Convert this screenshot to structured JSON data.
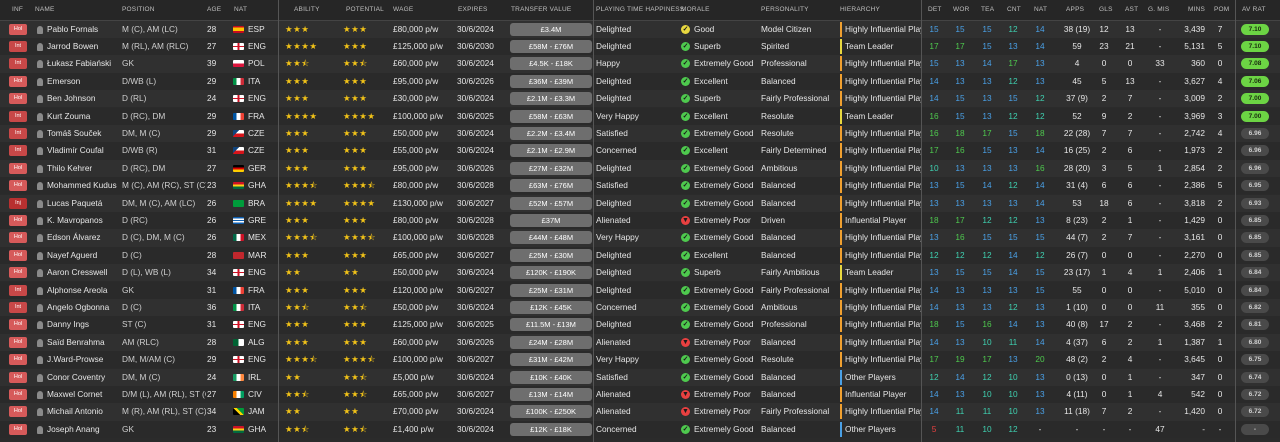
{
  "colors": {
    "green": "#4ec94e",
    "blue": "#4aa0e6",
    "teal": "#3fd0b0",
    "orange": "#f0a030",
    "red": "#e84040",
    "yellow": "#e8d840",
    "av_green": "#6cd444",
    "av_grey": "#4a4a4a"
  },
  "headers": {
    "inf": "INF",
    "name": "NAME",
    "position": "POSITION",
    "age": "AGE",
    "nat": "NAT",
    "ability": "ABILITY",
    "potential": "POTENTIAL",
    "wage": "WAGE",
    "expires": "EXPIRES",
    "transfer_value": "TRANSFER VALUE",
    "happiness": "PLAYING TIME HAPPINESS",
    "morale": "MORALE",
    "personality": "PERSONALITY",
    "hierarchy": "HIERARCHY",
    "det": "DET",
    "wor": "WOR",
    "tea": "TEA",
    "cnt": "CNT",
    "natstat": "NAT",
    "apps": "APPS",
    "gls": "GLS",
    "ast": "AST",
    "gmis": "G. MIS",
    "mins": "MINS",
    "pom": "POM",
    "avrat": "AV RAT"
  },
  "rows": [
    {
      "inf": "Hol",
      "inf_color": "#d65a5a",
      "name": "Pablo Fornals",
      "position": "M (C), AM (LC)",
      "age": "28",
      "nat": "ESP",
      "ability": 3,
      "potential": 3,
      "wage": "£80,000 p/w",
      "expires": "30/6/2024",
      "tv": "£3.4M",
      "happiness": "Delighted",
      "morale": "Good",
      "morale_color": "#e8d840",
      "personality": "Model Citizen",
      "hierarchy": "Highly Influential Player",
      "hier_color": "#f0a030",
      "det": "15",
      "wor": "15",
      "tea": "15",
      "cnt": "12",
      "natstat": "14",
      "apps": "38 (19)",
      "gls": "12",
      "ast": "13",
      "gmis": "-",
      "mins": "3,439",
      "pom": "7",
      "avrat": "7.10",
      "av_hi": true
    },
    {
      "inf": "Int",
      "inf_color": "#c84848",
      "name": "Jarrod Bowen",
      "position": "M (RL), AM (RLC)",
      "age": "27",
      "nat": "ENG",
      "ability": 4,
      "potential": 3,
      "wage": "£125,000 p/w",
      "expires": "30/6/2030",
      "tv": "£58M - £76M",
      "happiness": "Delighted",
      "morale": "Superb",
      "morale_color": "#4ec94e",
      "personality": "Spirited",
      "hierarchy": "Team Leader",
      "hier_color": "#e8d840",
      "det": "17",
      "wor": "17",
      "tea": "15",
      "cnt": "13",
      "natstat": "14",
      "apps": "59",
      "gls": "23",
      "ast": "21",
      "gmis": "-",
      "mins": "5,131",
      "pom": "5",
      "avrat": "7.10",
      "av_hi": true
    },
    {
      "inf": "Int",
      "inf_color": "#c84848",
      "name": "Łukasz Fabiański",
      "position": "GK",
      "age": "39",
      "nat": "POL",
      "ability": 2.5,
      "potential": 2.5,
      "wage": "£60,000 p/w",
      "expires": "30/6/2024",
      "tv": "£4.5K - £18K",
      "happiness": "Happy",
      "morale": "Extremely Good",
      "morale_color": "#4ec94e",
      "personality": "Professional",
      "hierarchy": "Highly Influential Player",
      "hier_color": "#f0a030",
      "det": "15",
      "wor": "13",
      "tea": "14",
      "cnt": "17",
      "natstat": "13",
      "apps": "4",
      "gls": "0",
      "ast": "0",
      "gmis": "33",
      "mins": "360",
      "pom": "0",
      "avrat": "7.08",
      "av_hi": true
    },
    {
      "inf": "Hol",
      "inf_color": "#d65a5a",
      "name": "Emerson",
      "position": "D/WB (L)",
      "age": "29",
      "nat": "ITA",
      "ability": 3,
      "potential": 3,
      "wage": "£95,000 p/w",
      "expires": "30/6/2026",
      "tv": "£36M - £39M",
      "happiness": "Delighted",
      "morale": "Excellent",
      "morale_color": "#4ec94e",
      "personality": "Balanced",
      "hierarchy": "Highly Influential Player",
      "hier_color": "#f0a030",
      "det": "14",
      "wor": "13",
      "tea": "13",
      "cnt": "12",
      "natstat": "13",
      "apps": "45",
      "gls": "5",
      "ast": "13",
      "gmis": "-",
      "mins": "3,627",
      "pom": "4",
      "avrat": "7.06",
      "av_hi": true
    },
    {
      "inf": "Hol",
      "inf_color": "#d65a5a",
      "name": "Ben Johnson",
      "position": "D (RL)",
      "age": "24",
      "nat": "ENG",
      "ability": 3,
      "potential": 3,
      "wage": "£30,000 p/w",
      "expires": "30/6/2024",
      "tv": "£2.1M - £3.3M",
      "happiness": "Delighted",
      "morale": "Superb",
      "morale_color": "#4ec94e",
      "personality": "Fairly Professional",
      "hierarchy": "Highly Influential Player",
      "hier_color": "#f0a030",
      "det": "14",
      "wor": "15",
      "tea": "13",
      "cnt": "15",
      "natstat": "12",
      "apps": "37 (9)",
      "gls": "2",
      "ast": "7",
      "gmis": "-",
      "mins": "3,009",
      "pom": "2",
      "avrat": "7.00",
      "av_hi": true
    },
    {
      "inf": "Int",
      "inf_color": "#c84848",
      "name": "Kurt Zouma",
      "position": "D (RC), DM",
      "age": "29",
      "nat": "FRA",
      "ability": 4,
      "potential": 4,
      "wage": "£100,000 p/w",
      "expires": "30/6/2025",
      "tv": "£58M - £63M",
      "happiness": "Very Happy",
      "morale": "Excellent",
      "morale_color": "#4ec94e",
      "personality": "Resolute",
      "hierarchy": "Team Leader",
      "hier_color": "#e8d840",
      "det": "16",
      "wor": "15",
      "tea": "13",
      "cnt": "12",
      "natstat": "12",
      "apps": "52",
      "gls": "9",
      "ast": "2",
      "gmis": "-",
      "mins": "3,969",
      "pom": "3",
      "avrat": "7.00",
      "av_hi": true
    },
    {
      "inf": "Int",
      "inf_color": "#c84848",
      "name": "Tomáš Souček",
      "position": "DM, M (C)",
      "age": "29",
      "nat": "CZE",
      "ability": 3,
      "potential": 3,
      "wage": "£50,000 p/w",
      "expires": "30/6/2024",
      "tv": "£2.2M - £3.4M",
      "happiness": "Satisfied",
      "morale": "Extremely Good",
      "morale_color": "#4ec94e",
      "personality": "Resolute",
      "hierarchy": "Highly Influential Player",
      "hier_color": "#f0a030",
      "det": "16",
      "wor": "18",
      "tea": "17",
      "cnt": "15",
      "natstat": "18",
      "apps": "22 (28)",
      "gls": "7",
      "ast": "7",
      "gmis": "-",
      "mins": "2,742",
      "pom": "4",
      "avrat": "6.96",
      "av_hi": false
    },
    {
      "inf": "Int",
      "inf_color": "#c84848",
      "name": "Vladimír Coufal",
      "position": "D/WB (R)",
      "age": "31",
      "nat": "CZE",
      "ability": 3,
      "potential": 3,
      "wage": "£55,000 p/w",
      "expires": "30/6/2024",
      "tv": "£2.1M - £2.9M",
      "happiness": "Concerned",
      "morale": "Excellent",
      "morale_color": "#4ec94e",
      "personality": "Fairly Determined",
      "hierarchy": "Highly Influential Player",
      "hier_color": "#f0a030",
      "det": "17",
      "wor": "16",
      "tea": "15",
      "cnt": "13",
      "natstat": "14",
      "apps": "16 (25)",
      "gls": "2",
      "ast": "6",
      "gmis": "-",
      "mins": "1,973",
      "pom": "2",
      "avrat": "6.96",
      "av_hi": false
    },
    {
      "inf": "Hol",
      "inf_color": "#d65a5a",
      "name": "Thilo Kehrer",
      "position": "D (RC), DM",
      "age": "27",
      "nat": "GER",
      "ability": 3,
      "potential": 3,
      "wage": "£95,000 p/w",
      "expires": "30/6/2026",
      "tv": "£27M - £32M",
      "happiness": "Delighted",
      "morale": "Extremely Good",
      "morale_color": "#4ec94e",
      "personality": "Ambitious",
      "hierarchy": "Highly Influential Player",
      "hier_color": "#f0a030",
      "det": "10",
      "wor": "13",
      "tea": "13",
      "cnt": "13",
      "natstat": "16",
      "apps": "28 (20)",
      "gls": "3",
      "ast": "5",
      "gmis": "1",
      "mins": "2,854",
      "pom": "2",
      "avrat": "6.96",
      "av_hi": false
    },
    {
      "inf": "Hol",
      "inf_color": "#d65a5a",
      "name": "Mohammed Kudus",
      "position": "M (C), AM (RC), ST (C)",
      "age": "23",
      "nat": "GHA",
      "ability": 3.5,
      "potential": 3.5,
      "wage": "£80,000 p/w",
      "expires": "30/6/2028",
      "tv": "£63M - £76M",
      "happiness": "Satisfied",
      "morale": "Extremely Good",
      "morale_color": "#4ec94e",
      "personality": "Balanced",
      "hierarchy": "Highly Influential Player",
      "hier_color": "#f0a030",
      "det": "13",
      "wor": "15",
      "tea": "14",
      "cnt": "12",
      "natstat": "14",
      "apps": "31 (4)",
      "gls": "6",
      "ast": "6",
      "gmis": "-",
      "mins": "2,386",
      "pom": "5",
      "avrat": "6.95",
      "av_hi": false
    },
    {
      "inf": "Inj",
      "inf_color": "#b83030",
      "name": "Lucas Paquetá",
      "position": "DM, M (C), AM (LC)",
      "age": "26",
      "nat": "BRA",
      "ability": 4,
      "potential": 4,
      "wage": "£130,000 p/w",
      "expires": "30/6/2027",
      "tv": "£52M - £57M",
      "happiness": "Delighted",
      "morale": "Extremely Good",
      "morale_color": "#4ec94e",
      "personality": "Balanced",
      "hierarchy": "Highly Influential Player",
      "hier_color": "#f0a030",
      "det": "13",
      "wor": "13",
      "tea": "13",
      "cnt": "13",
      "natstat": "14",
      "apps": "53",
      "gls": "18",
      "ast": "6",
      "gmis": "-",
      "mins": "3,818",
      "pom": "2",
      "avrat": "6.93",
      "av_hi": false
    },
    {
      "inf": "Hol",
      "inf_color": "#d65a5a",
      "name": "K. Mavropanos",
      "position": "D (RC)",
      "age": "26",
      "nat": "GRE",
      "ability": 3,
      "potential": 3,
      "wage": "£80,000 p/w",
      "expires": "30/6/2028",
      "tv": "£37M",
      "happiness": "Alienated",
      "morale": "Extremely Poor",
      "morale_color": "#e84040",
      "personality": "Driven",
      "hierarchy": "Influential Player",
      "hier_color": "#f0a030",
      "det": "18",
      "wor": "17",
      "tea": "12",
      "cnt": "12",
      "natstat": "13",
      "apps": "8 (23)",
      "gls": "2",
      "ast": "1",
      "gmis": "-",
      "mins": "1,429",
      "pom": "0",
      "avrat": "6.85",
      "av_hi": false
    },
    {
      "inf": "Hol",
      "inf_color": "#d65a5a",
      "name": "Edson Álvarez",
      "position": "D (C), DM, M (C)",
      "age": "26",
      "nat": "MEX",
      "ability": 3.5,
      "potential": 3.5,
      "wage": "£100,000 p/w",
      "expires": "30/6/2028",
      "tv": "£44M - £48M",
      "happiness": "Very Happy",
      "morale": "Extremely Good",
      "morale_color": "#4ec94e",
      "personality": "Balanced",
      "hierarchy": "Highly Influential Player",
      "hier_color": "#f0a030",
      "det": "13",
      "wor": "16",
      "tea": "15",
      "cnt": "15",
      "natstat": "15",
      "apps": "44 (7)",
      "gls": "2",
      "ast": "7",
      "gmis": "-",
      "mins": "3,161",
      "pom": "0",
      "avrat": "6.85",
      "av_hi": false
    },
    {
      "inf": "Hol",
      "inf_color": "#d65a5a",
      "name": "Nayef Aguerd",
      "position": "D (C)",
      "age": "28",
      "nat": "MAR",
      "ability": 3,
      "potential": 3,
      "wage": "£65,000 p/w",
      "expires": "30/6/2027",
      "tv": "£25M - £30M",
      "happiness": "Delighted",
      "morale": "Excellent",
      "morale_color": "#4ec94e",
      "personality": "Balanced",
      "hierarchy": "Highly Influential Player",
      "hier_color": "#f0a030",
      "det": "12",
      "wor": "12",
      "tea": "12",
      "cnt": "14",
      "natstat": "12",
      "apps": "26 (7)",
      "gls": "0",
      "ast": "0",
      "gmis": "-",
      "mins": "2,270",
      "pom": "0",
      "avrat": "6.85",
      "av_hi": false
    },
    {
      "inf": "Hol",
      "inf_color": "#d65a5a",
      "name": "Aaron Cresswell",
      "position": "D (L), WB (L)",
      "age": "34",
      "nat": "ENG",
      "ability": 2,
      "potential": 2,
      "wage": "£50,000 p/w",
      "expires": "30/6/2024",
      "tv": "£120K - £190K",
      "happiness": "Delighted",
      "morale": "Superb",
      "morale_color": "#4ec94e",
      "personality": "Fairly Ambitious",
      "hierarchy": "Team Leader",
      "hier_color": "#e8d840",
      "det": "13",
      "wor": "15",
      "tea": "15",
      "cnt": "14",
      "natstat": "15",
      "apps": "23 (17)",
      "gls": "1",
      "ast": "4",
      "gmis": "1",
      "mins": "2,406",
      "pom": "1",
      "avrat": "6.84",
      "av_hi": false
    },
    {
      "inf": "Int",
      "inf_color": "#c84848",
      "name": "Alphonse Areola",
      "position": "GK",
      "age": "31",
      "nat": "FRA",
      "ability": 3,
      "potential": 3,
      "wage": "£120,000 p/w",
      "expires": "30/6/2027",
      "tv": "£25M - £31M",
      "happiness": "Delighted",
      "morale": "Extremely Good",
      "morale_color": "#4ec94e",
      "personality": "Fairly Professional",
      "hierarchy": "Highly Influential Player",
      "hier_color": "#f0a030",
      "det": "14",
      "wor": "13",
      "tea": "13",
      "cnt": "13",
      "natstat": "15",
      "apps": "55",
      "gls": "0",
      "ast": "0",
      "gmis": "-",
      "mins": "5,010",
      "pom": "0",
      "avrat": "6.84",
      "av_hi": false
    },
    {
      "inf": "Int",
      "inf_color": "#c84848",
      "name": "Angelo Ogbonna",
      "position": "D (C)",
      "age": "36",
      "nat": "ITA",
      "ability": 2.5,
      "potential": 2.5,
      "wage": "£50,000 p/w",
      "expires": "30/6/2024",
      "tv": "£12K - £45K",
      "happiness": "Concerned",
      "morale": "Extremely Good",
      "morale_color": "#4ec94e",
      "personality": "Ambitious",
      "hierarchy": "Highly Influential Player",
      "hier_color": "#f0a030",
      "det": "14",
      "wor": "13",
      "tea": "13",
      "cnt": "12",
      "natstat": "13",
      "apps": "1 (10)",
      "gls": "0",
      "ast": "0",
      "gmis": "11",
      "mins": "355",
      "pom": "0",
      "avrat": "6.82",
      "av_hi": false
    },
    {
      "inf": "Hol",
      "inf_color": "#d65a5a",
      "name": "Danny Ings",
      "position": "ST (C)",
      "age": "31",
      "nat": "ENG",
      "ability": 3,
      "potential": 3,
      "wage": "£125,000 p/w",
      "expires": "30/6/2025",
      "tv": "£11.5M - £13M",
      "happiness": "Delighted",
      "morale": "Extremely Good",
      "morale_color": "#4ec94e",
      "personality": "Professional",
      "hierarchy": "Highly Influential Player",
      "hier_color": "#f0a030",
      "det": "18",
      "wor": "15",
      "tea": "16",
      "cnt": "14",
      "natstat": "13",
      "apps": "40 (8)",
      "gls": "17",
      "ast": "2",
      "gmis": "-",
      "mins": "3,468",
      "pom": "2",
      "avrat": "6.81",
      "av_hi": false
    },
    {
      "inf": "Hol",
      "inf_color": "#d65a5a",
      "name": "Saïd Benrahma",
      "position": "AM (RLC)",
      "age": "28",
      "nat": "ALG",
      "ability": 3,
      "potential": 3,
      "wage": "£60,000 p/w",
      "expires": "30/6/2026",
      "tv": "£24M - £28M",
      "happiness": "Alienated",
      "morale": "Extremely Poor",
      "morale_color": "#e84040",
      "personality": "Balanced",
      "hierarchy": "Highly Influential Player",
      "hier_color": "#f0a030",
      "det": "14",
      "wor": "13",
      "tea": "10",
      "cnt": "11",
      "natstat": "14",
      "apps": "4 (37)",
      "gls": "6",
      "ast": "2",
      "gmis": "1",
      "mins": "1,387",
      "pom": "1",
      "avrat": "6.80",
      "av_hi": false
    },
    {
      "inf": "Hol",
      "inf_color": "#d65a5a",
      "name": "J.Ward-Prowse",
      "position": "DM, M/AM (C)",
      "age": "29",
      "nat": "ENG",
      "ability": 3.5,
      "potential": 3.5,
      "wage": "£100,000 p/w",
      "expires": "30/6/2027",
      "tv": "£31M - £42M",
      "happiness": "Very Happy",
      "morale": "Extremely Good",
      "morale_color": "#4ec94e",
      "personality": "Resolute",
      "hierarchy": "Highly Influential Player",
      "hier_color": "#f0a030",
      "det": "17",
      "wor": "19",
      "tea": "17",
      "cnt": "13",
      "natstat": "20",
      "apps": "48 (2)",
      "gls": "2",
      "ast": "4",
      "gmis": "-",
      "mins": "3,645",
      "pom": "0",
      "avrat": "6.75",
      "av_hi": false
    },
    {
      "inf": "Hol",
      "inf_color": "#d65a5a",
      "name": "Conor Coventry",
      "position": "DM, M (C)",
      "age": "24",
      "nat": "IRL",
      "ability": 2,
      "potential": 2.5,
      "wage": "£5,000 p/w",
      "expires": "30/6/2024",
      "tv": "£10K - £40K",
      "happiness": "Satisfied",
      "morale": "Extremely Good",
      "morale_color": "#4ec94e",
      "personality": "Balanced",
      "hierarchy": "Other Players",
      "hier_color": "#4aa0e6",
      "det": "12",
      "wor": "14",
      "tea": "12",
      "cnt": "10",
      "natstat": "13",
      "apps": "0 (13)",
      "gls": "0",
      "ast": "1",
      "gmis": "-",
      "mins": "347",
      "pom": "0",
      "avrat": "6.74",
      "av_hi": false
    },
    {
      "inf": "Hol",
      "inf_color": "#d65a5a",
      "name": "Maxwel Cornet",
      "position": "D/M (L), AM (RL), ST (C)",
      "age": "27",
      "nat": "CIV",
      "ability": 2.5,
      "potential": 2.5,
      "wage": "£65,000 p/w",
      "expires": "30/6/2027",
      "tv": "£13M - £14M",
      "happiness": "Alienated",
      "morale": "Extremely Poor",
      "morale_color": "#e84040",
      "personality": "Balanced",
      "hierarchy": "Influential Player",
      "hier_color": "#f0a030",
      "det": "14",
      "wor": "13",
      "tea": "10",
      "cnt": "10",
      "natstat": "13",
      "apps": "4 (11)",
      "gls": "0",
      "ast": "1",
      "gmis": "4",
      "mins": "542",
      "pom": "0",
      "avrat": "6.72",
      "av_hi": false
    },
    {
      "inf": "Hol",
      "inf_color": "#d65a5a",
      "name": "Michail Antonio",
      "position": "M (R), AM (RL), ST (C)",
      "age": "34",
      "nat": "JAM",
      "ability": 2,
      "potential": 2,
      "wage": "£70,000 p/w",
      "expires": "30/6/2024",
      "tv": "£100K - £250K",
      "happiness": "Alienated",
      "morale": "Extremely Poor",
      "morale_color": "#e84040",
      "personality": "Fairly Professional",
      "hierarchy": "Highly Influential Player",
      "hier_color": "#f0a030",
      "det": "14",
      "wor": "11",
      "tea": "11",
      "cnt": "10",
      "natstat": "13",
      "apps": "11 (18)",
      "gls": "7",
      "ast": "2",
      "gmis": "-",
      "mins": "1,420",
      "pom": "0",
      "avrat": "6.72",
      "av_hi": false
    },
    {
      "inf": "Hol",
      "inf_color": "#d65a5a",
      "name": "Joseph Anang",
      "position": "GK",
      "age": "23",
      "nat": "GHA",
      "ability": 2.5,
      "potential": 2.5,
      "wage": "£1,400 p/w",
      "expires": "30/6/2024",
      "tv": "£12K - £18K",
      "happiness": "Concerned",
      "morale": "Extremely Good",
      "morale_color": "#4ec94e",
      "personality": "Balanced",
      "hierarchy": "Other Players",
      "hier_color": "#4aa0e6",
      "det": "5",
      "wor": "11",
      "tea": "10",
      "cnt": "12",
      "natstat": "-",
      "apps": "-",
      "gls": "-",
      "ast": "-",
      "gmis": "47",
      "mins": "-",
      "pom": "-",
      "avrat": "-",
      "av_hi": false
    }
  ]
}
